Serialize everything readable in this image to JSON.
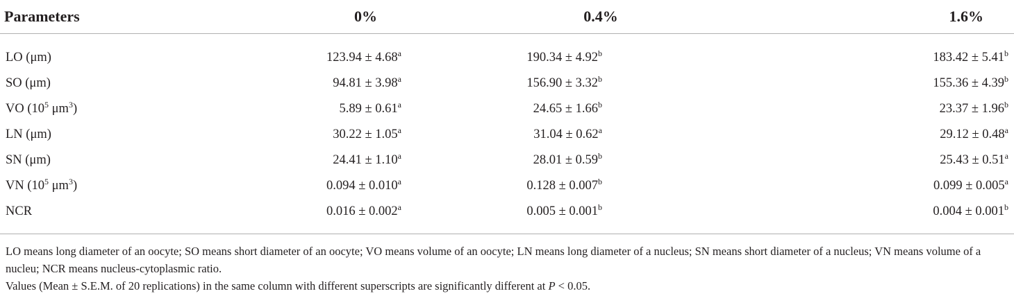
{
  "table": {
    "headers": [
      "Parameters",
      "0%",
      "0.4%",
      "1.6%"
    ],
    "rows": [
      {
        "label": "LO (μm)",
        "label_main": "LO (μm)",
        "label_sup": "",
        "label_tail": "",
        "cells": [
          {
            "value": "123.94 ± 4.68",
            "sup": "a"
          },
          {
            "value": "190.34 ± 4.92",
            "sup": "b"
          },
          {
            "value": "183.42 ± 5.41",
            "sup": "b"
          }
        ]
      },
      {
        "label": "SO (μm)",
        "label_main": "SO (μm)",
        "label_sup": "",
        "label_tail": "",
        "cells": [
          {
            "value": "94.81 ± 3.98",
            "sup": "a"
          },
          {
            "value": "156.90 ± 3.32",
            "sup": "b"
          },
          {
            "value": "155.36 ± 4.39",
            "sup": "b"
          }
        ]
      },
      {
        "label": "VO (10⁵ μm³)",
        "label_main": "VO (10",
        "label_sup": "5",
        "label_mid": " μm",
        "label_sup2": "3",
        "label_tail": ")",
        "cells": [
          {
            "value": "5.89 ± 0.61",
            "sup": "a"
          },
          {
            "value": "24.65 ± 1.66",
            "sup": "b"
          },
          {
            "value": "23.37 ± 1.96",
            "sup": "b"
          }
        ]
      },
      {
        "label": "LN (μm)",
        "label_main": "LN (μm)",
        "label_sup": "",
        "label_tail": "",
        "cells": [
          {
            "value": "30.22 ± 1.05",
            "sup": "a"
          },
          {
            "value": "31.04 ± 0.62",
            "sup": "a"
          },
          {
            "value": "29.12 ± 0.48",
            "sup": "a"
          }
        ]
      },
      {
        "label": "SN (μm)",
        "label_main": "SN (μm)",
        "label_sup": "",
        "label_tail": "",
        "cells": [
          {
            "value": "24.41 ± 1.10",
            "sup": "a"
          },
          {
            "value": "28.01 ± 0.59",
            "sup": "b"
          },
          {
            "value": "25.43 ± 0.51",
            "sup": "a"
          }
        ]
      },
      {
        "label": "VN (10⁵ μm³)",
        "label_main": "VN (10",
        "label_sup": "5",
        "label_mid": " μm",
        "label_sup2": "3",
        "label_tail": ")",
        "cells": [
          {
            "value": "0.094 ± 0.010",
            "sup": "a"
          },
          {
            "value": "0.128 ± 0.007",
            "sup": "b"
          },
          {
            "value": "0.099 ± 0.005",
            "sup": "a"
          }
        ]
      },
      {
        "label": "NCR",
        "label_main": "NCR",
        "label_sup": "",
        "label_tail": "",
        "cells": [
          {
            "value": "0.016 ± 0.002",
            "sup": "a"
          },
          {
            "value": "0.005 ± 0.001",
            "sup": "b"
          },
          {
            "value": "0.004 ± 0.001",
            "sup": "b"
          }
        ]
      }
    ]
  },
  "notes": {
    "line1": "LO means long diameter of an oocyte; SO means short diameter of an oocyte; VO means volume of an oocyte; LN means long diameter of a nucleus; SN means short diameter of a nucleus; VN means volume of a nucleu; NCR means nucleus-cytoplasmic ratio.",
    "line2_before": "Values (Mean ± S.E.M. of 20 replications) in the same column with different superscripts are significantly different at ",
    "line2_italic": "P",
    "line2_after": " < 0.05."
  }
}
